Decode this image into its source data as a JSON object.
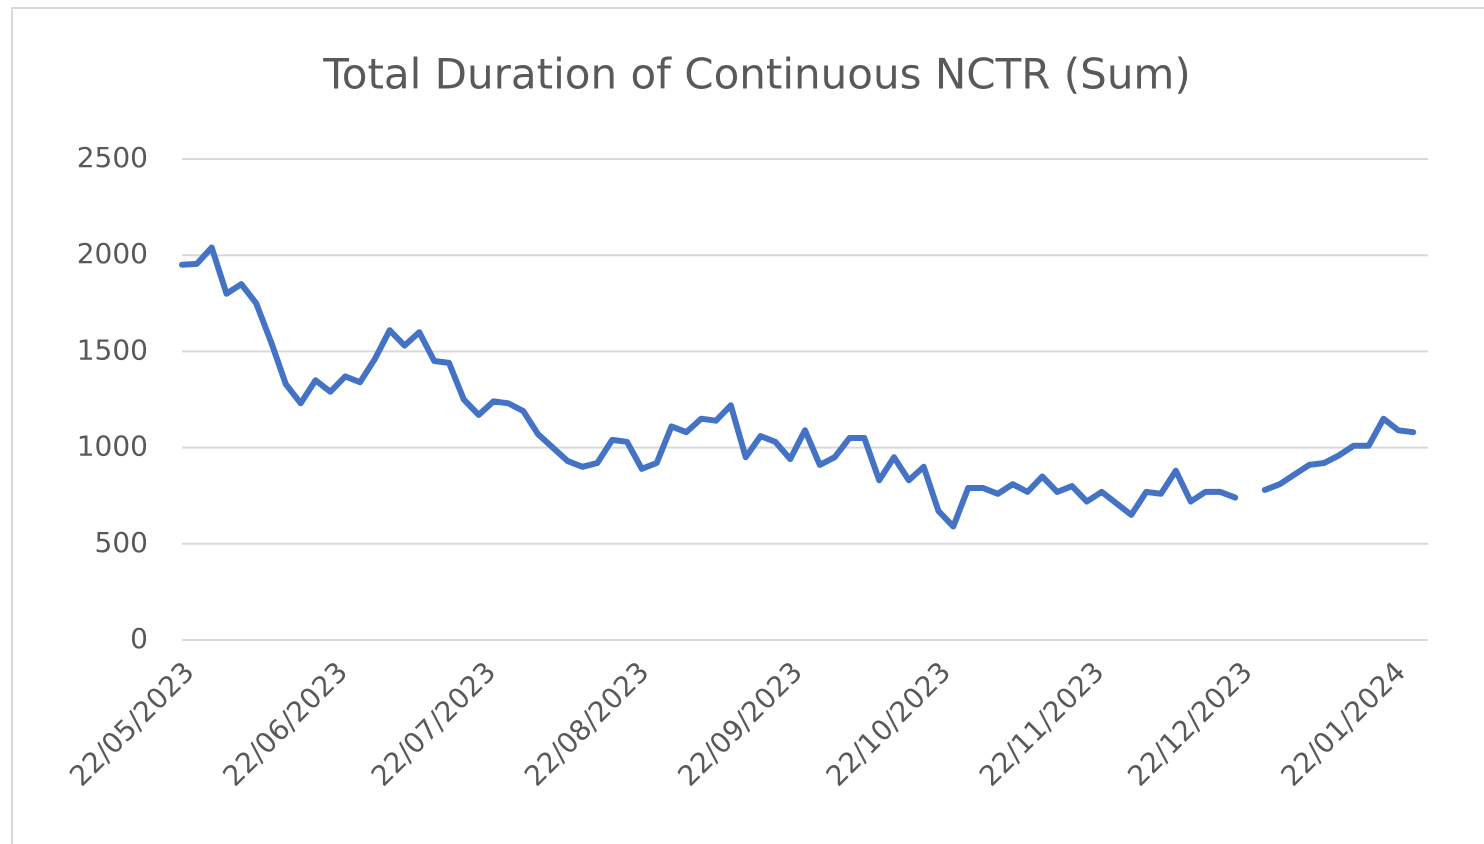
{
  "chart_data": {
    "type": "line",
    "title": "Total Duration of Continuous NCTR (Sum)",
    "x": [
      "22/05/2023",
      "25/05/2023",
      "28/05/2023",
      "31/05/2023",
      "03/06/2023",
      "06/06/2023",
      "09/06/2023",
      "12/06/2023",
      "15/06/2023",
      "18/06/2023",
      "21/06/2023",
      "24/06/2023",
      "27/06/2023",
      "30/06/2023",
      "03/07/2023",
      "06/07/2023",
      "09/07/2023",
      "12/07/2023",
      "15/07/2023",
      "18/07/2023",
      "21/07/2023",
      "24/07/2023",
      "27/07/2023",
      "30/07/2023",
      "02/08/2023",
      "05/08/2023",
      "08/08/2023",
      "11/08/2023",
      "14/08/2023",
      "17/08/2023",
      "20/08/2023",
      "23/08/2023",
      "26/08/2023",
      "29/08/2023",
      "01/09/2023",
      "04/09/2023",
      "07/09/2023",
      "10/09/2023",
      "13/09/2023",
      "16/09/2023",
      "19/09/2023",
      "22/09/2023",
      "25/09/2023",
      "28/09/2023",
      "01/10/2023",
      "04/10/2023",
      "07/10/2023",
      "10/10/2023",
      "13/10/2023",
      "16/10/2023",
      "19/10/2023",
      "22/10/2023",
      "25/10/2023",
      "28/10/2023",
      "31/10/2023",
      "03/11/2023",
      "06/11/2023",
      "09/11/2023",
      "12/11/2023",
      "15/11/2023",
      "18/11/2023",
      "21/11/2023",
      "24/11/2023",
      "27/11/2023",
      "30/11/2023",
      "03/12/2023",
      "06/12/2023",
      "09/12/2023",
      "12/12/2023",
      "15/12/2023",
      "18/12/2023",
      "21/12/2023",
      "24/12/2023",
      "27/12/2023",
      "30/12/2023",
      "02/01/2024",
      "05/01/2024",
      "08/01/2024",
      "11/01/2024",
      "14/01/2024",
      "17/01/2024",
      "20/01/2024",
      "23/01/2024",
      "26/01/2024"
    ],
    "values": [
      1950,
      1955,
      2040,
      1800,
      1850,
      1750,
      1550,
      1330,
      1230,
      1350,
      1290,
      1370,
      1340,
      1460,
      1610,
      1530,
      1600,
      1450,
      1440,
      1250,
      1170,
      1240,
      1230,
      1190,
      1070,
      1000,
      930,
      900,
      920,
      1040,
      1030,
      890,
      920,
      1110,
      1080,
      1150,
      1140,
      1220,
      950,
      1060,
      1030,
      940,
      1090,
      910,
      950,
      1050,
      1050,
      830,
      950,
      830,
      900,
      670,
      590,
      790,
      790,
      760,
      810,
      770,
      850,
      770,
      800,
      720,
      770,
      710,
      650,
      770,
      760,
      880,
      720,
      770,
      770,
      740,
      null,
      780,
      810,
      860,
      910,
      920,
      960,
      1010,
      1010,
      1150,
      1090,
      1080
    ],
    "color": "#4472c4",
    "xlim": [
      "22/05/2023",
      "29/01/2024"
    ],
    "xticks": [
      "22/05/2023",
      "22/06/2023",
      "22/07/2023",
      "22/08/2023",
      "22/09/2023",
      "22/10/2023",
      "22/11/2023",
      "22/12/2023",
      "22/01/2024"
    ],
    "ylim": [
      0,
      2500
    ],
    "yticks": [
      0,
      500,
      1000,
      1500,
      2000,
      2500
    ],
    "grid": true
  }
}
